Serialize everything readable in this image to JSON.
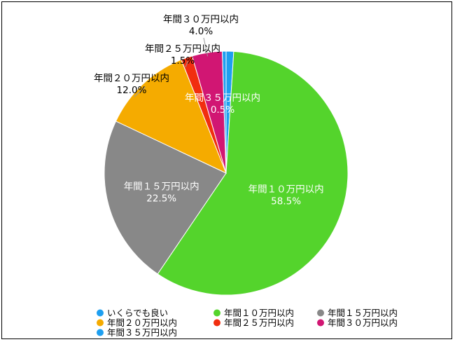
{
  "chart_data": {
    "type": "pie",
    "slices": [
      {
        "label": "いくらでも良い",
        "value": 1.0,
        "color": "#1e9ff0",
        "pct_text": "",
        "show_label": false
      },
      {
        "label": "年間１０万円以内",
        "value": 58.5,
        "color": "#54d42c",
        "pct_text": "58.5%",
        "show_label": true
      },
      {
        "label": "年間１５万円以内",
        "value": 22.5,
        "color": "#888888",
        "pct_text": "22.5%",
        "show_label": true
      },
      {
        "label": "年間２０万円以内",
        "value": 12.0,
        "color": "#f5ab00",
        "pct_text": "12.0%",
        "show_label": true
      },
      {
        "label": "年間２５万円以内",
        "value": 1.5,
        "color": "#f12e0f",
        "pct_text": "1.5%",
        "show_label": true
      },
      {
        "label": "年間３０万円以内",
        "value": 4.0,
        "color": "#d11673",
        "pct_text": "4.0%",
        "show_label": true
      },
      {
        "label": "年間３５万円以内",
        "value": 0.5,
        "color": "#1e9ff0",
        "pct_text": "0.5%",
        "show_label": true
      }
    ],
    "legend": [
      {
        "label": "いくらでも良い",
        "color": "#1e9ff0"
      },
      {
        "label": "年間１０万円以内",
        "color": "#54d42c"
      },
      {
        "label": "年間１５万円以内",
        "color": "#888888"
      },
      {
        "label": "年間２０万円以内",
        "color": "#f5ab00"
      },
      {
        "label": "年間２５万円以内",
        "color": "#f12e0f"
      },
      {
        "label": "年間３０万円以内",
        "color": "#d11673"
      },
      {
        "label": "年間３５万円以内",
        "color": "#1e9ff0"
      }
    ],
    "legend_position": "bottom"
  }
}
